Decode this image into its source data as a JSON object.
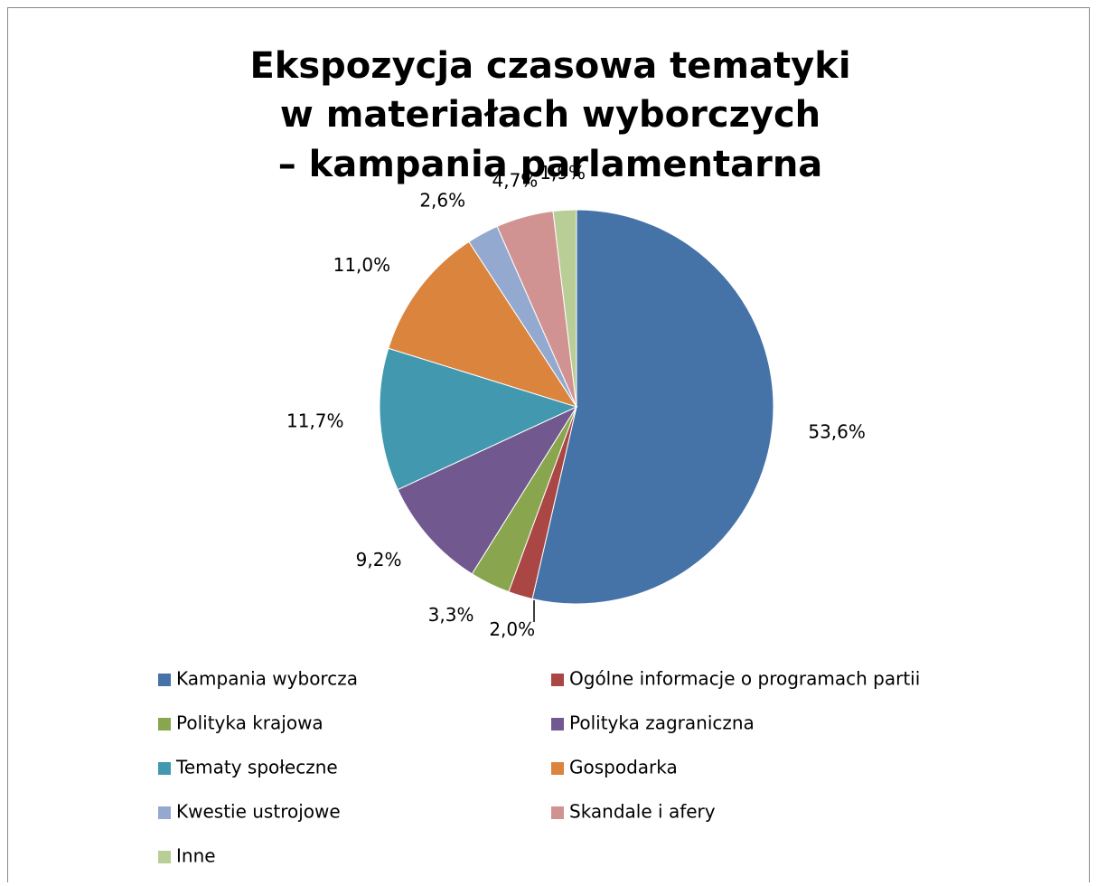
{
  "chart_data": {
    "type": "pie",
    "title": [
      "Ekspozycja czasowa tematyki",
      "w materiałach wyborczych",
      "– kampania parlamentarna"
    ],
    "categories": [
      "Kampania wyborcza",
      "Ogólne informacje o programach partii",
      "Polityka krajowa",
      "Polityka zagraniczna",
      "Tematy społeczne",
      "Gospodarka",
      "Kwestie ustrojowe",
      "Skandale i afery",
      "Inne"
    ],
    "values": [
      53.6,
      2.0,
      3.3,
      9.2,
      11.7,
      11.0,
      2.6,
      4.7,
      1.9
    ],
    "value_labels": [
      "53,6%",
      "2,0%",
      "3,3%",
      "9,2%",
      "11,7%",
      "11,0%",
      "2,6%",
      "4,7%",
      "1,9%"
    ],
    "colors": [
      "#4573a7",
      "#aa4643",
      "#89a54e",
      "#71588f",
      "#4198af",
      "#db843d",
      "#93a9cf",
      "#d19392",
      "#b9cd96"
    ],
    "legend": "bottom"
  }
}
